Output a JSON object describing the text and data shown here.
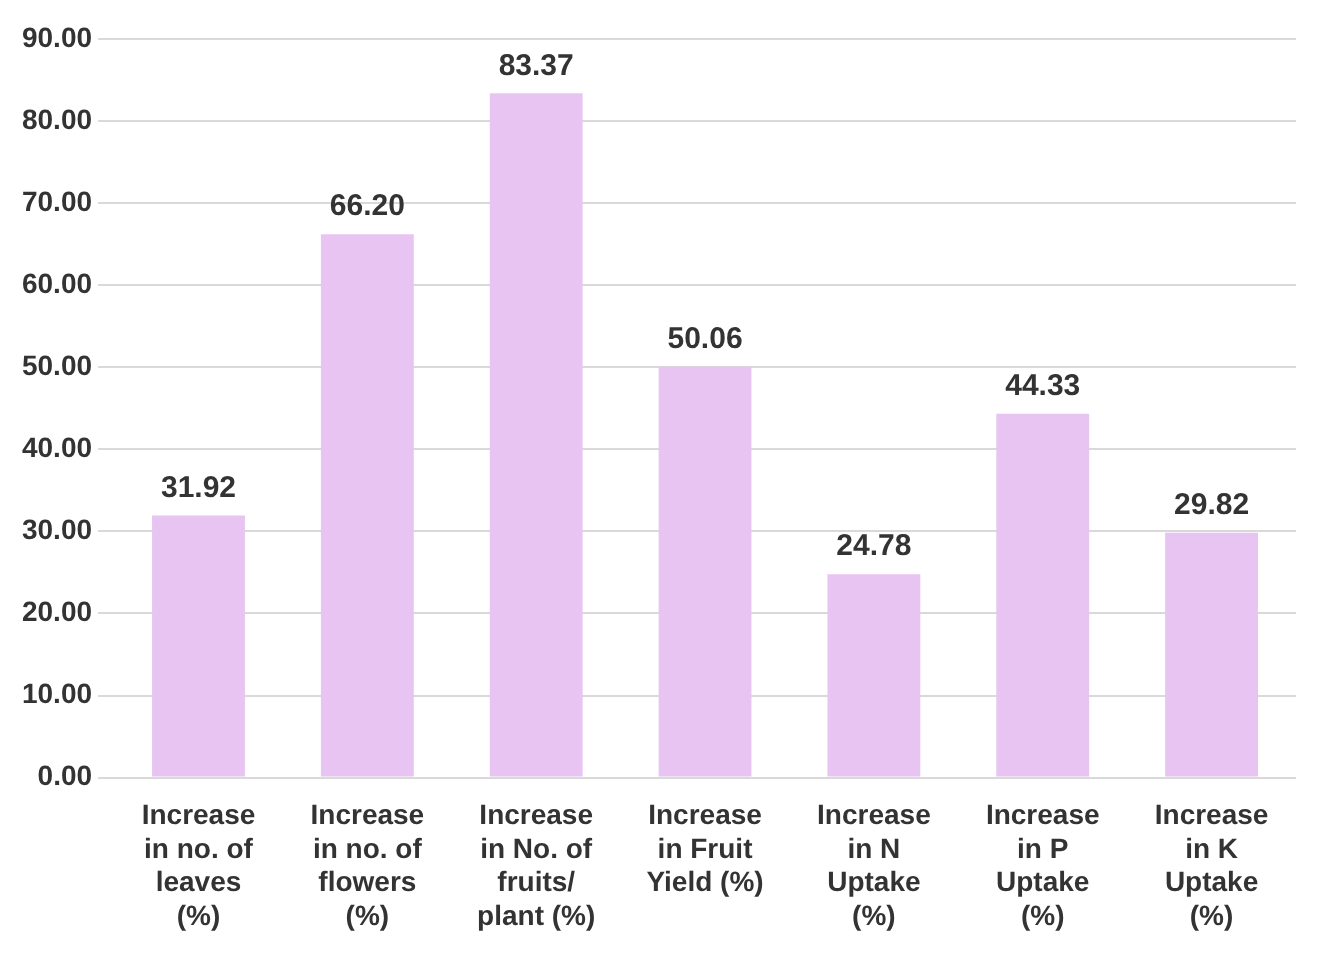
{
  "chart_data": {
    "type": "bar",
    "categories": [
      "Increase in no. of leaves (%)",
      "Increase in no. of flowers (%)",
      "Increase in No. of fruits/ plant (%)",
      "Increase in Fruit Yield (%)",
      "Increase in N Uptake (%)",
      "Increase in P Uptake (%)",
      "Increase in K Uptake (%)"
    ],
    "values": [
      31.92,
      66.2,
      83.37,
      50.06,
      24.78,
      44.33,
      29.82
    ],
    "color": "#e8c4f2",
    "ylim": [
      0,
      90
    ],
    "yticks": [
      {
        "value": 0,
        "label": "0.00"
      },
      {
        "value": 10,
        "label": "10.00"
      },
      {
        "value": 20,
        "label": "20.00"
      },
      {
        "value": 30,
        "label": "30.00"
      },
      {
        "value": 40,
        "label": "40.00"
      },
      {
        "value": 50,
        "label": "50.00"
      },
      {
        "value": 60,
        "label": "60.00"
      },
      {
        "value": 70,
        "label": "70.00"
      },
      {
        "value": 80,
        "label": "80.00"
      },
      {
        "value": 90,
        "label": "90.00"
      }
    ],
    "value_labels": [
      "31.92",
      "66.20",
      "83.37",
      "50.06",
      "24.78",
      "44.33",
      "29.82"
    ],
    "grid": "y",
    "legend": false
  }
}
